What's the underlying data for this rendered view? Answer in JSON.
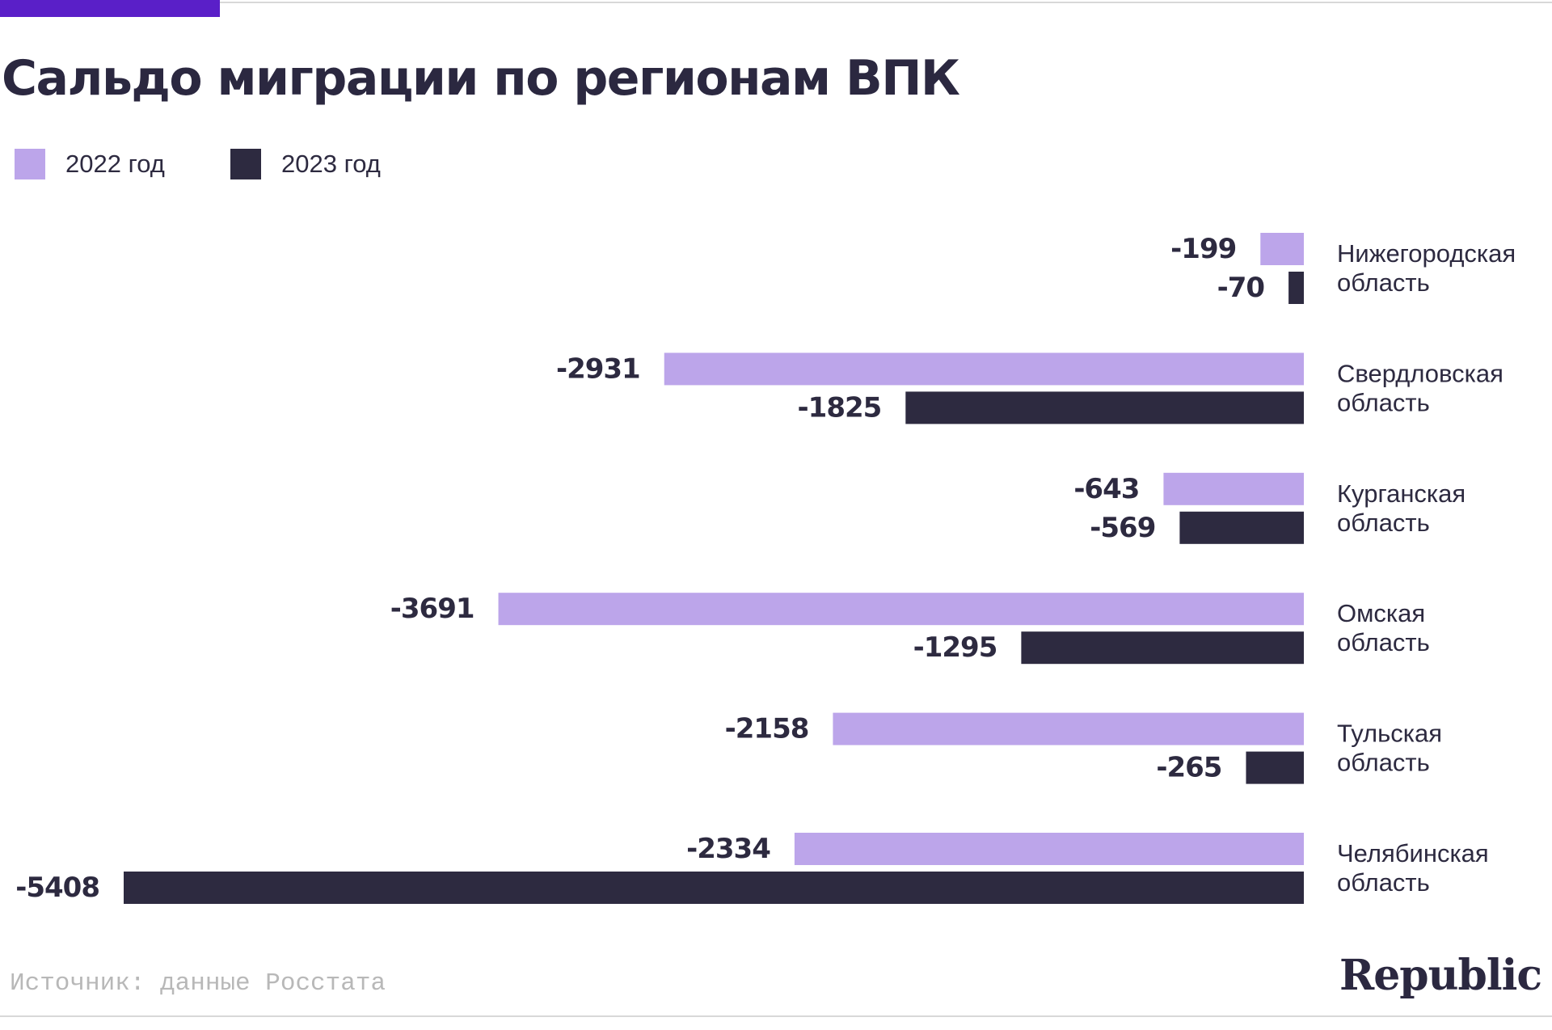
{
  "title": "Сальдо миграции по регионам ВПК",
  "legend": [
    {
      "label": "2022 год",
      "color": "#bca5ea"
    },
    {
      "label": "2023 год",
      "color": "#2d2a40"
    }
  ],
  "chart_data": {
    "type": "bar",
    "orientation": "horizontal",
    "title": "Сальдо миграции по регионам ВПК",
    "categories": [
      [
        "Нижегородская",
        "область"
      ],
      [
        "Свердловская",
        "область"
      ],
      [
        "Курганская",
        "область"
      ],
      [
        "Омская",
        "область"
      ],
      [
        "Тульская",
        "область"
      ],
      [
        "Челябинская",
        "область"
      ]
    ],
    "series": [
      {
        "name": "2022 год",
        "color": "#bca5ea",
        "values": [
          -199,
          -2931,
          -643,
          -3691,
          -2158,
          -2334
        ]
      },
      {
        "name": "2023 год",
        "color": "#2d2a40",
        "values": [
          -70,
          -1825,
          -569,
          -1295,
          -265,
          -5408
        ]
      }
    ],
    "xlim": [
      -5408,
      0
    ],
    "grid": false,
    "legend_position": "top-left",
    "data_labels": true,
    "category_labels_position": "right"
  },
  "footer": {
    "source": "Источник: данные Росстата",
    "brand": "Republic"
  }
}
